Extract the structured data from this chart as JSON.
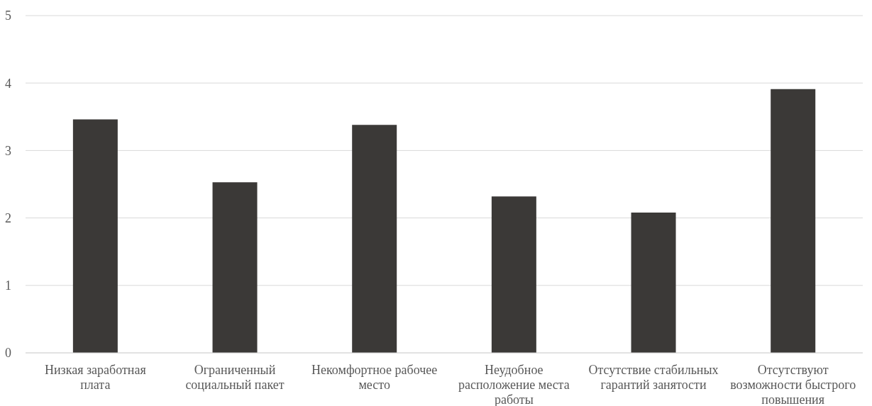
{
  "chart_data": {
    "type": "bar",
    "categories": [
      "Низкая заработная\nплата",
      "Ограниченный\nсоциальный пакет",
      "Некомфортное рабочее\nместо",
      "Неудобное\nрасположение места\nработы",
      "Отсутствие стабильных\nгарантий занятости",
      "Отсутствуют\nвозможности быстрого\nповышения"
    ],
    "values": [
      3.46,
      2.53,
      3.38,
      2.32,
      2.08,
      3.91
    ],
    "color": "#3b3937",
    "ylim": [
      0,
      5
    ],
    "yticks": [
      0,
      1,
      2,
      3,
      4,
      5
    ],
    "grid": "y"
  }
}
